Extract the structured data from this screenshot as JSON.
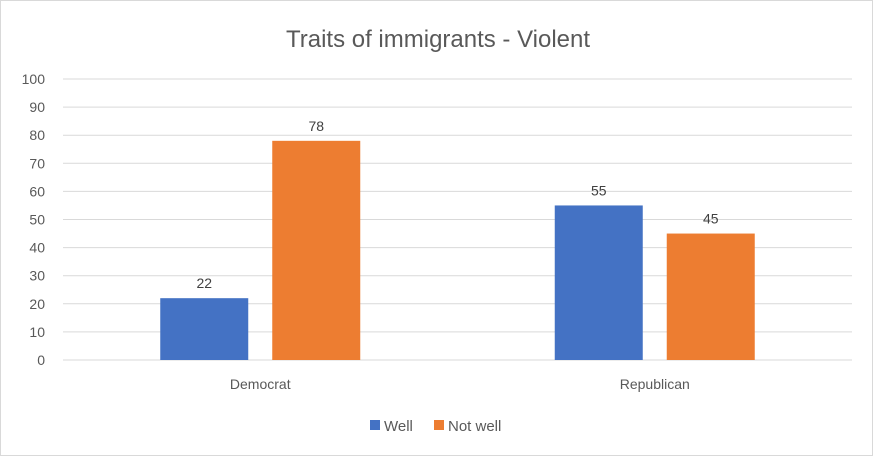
{
  "chart_data": {
    "type": "bar",
    "title": "Traits of immigrants - Violent",
    "categories": [
      "Democrat",
      "Republican"
    ],
    "series": [
      {
        "name": "Well",
        "values": [
          22,
          55
        ],
        "color": "#4472C4"
      },
      {
        "name": "Not well",
        "values": [
          78,
          45
        ],
        "color": "#ED7D31"
      }
    ],
    "ylim": [
      0,
      100
    ],
    "yticks": [
      0,
      10,
      20,
      30,
      40,
      50,
      60,
      70,
      80,
      90,
      100
    ],
    "grid": true,
    "legend_position": "bottom",
    "gridline_color": "#d9d9d9"
  }
}
